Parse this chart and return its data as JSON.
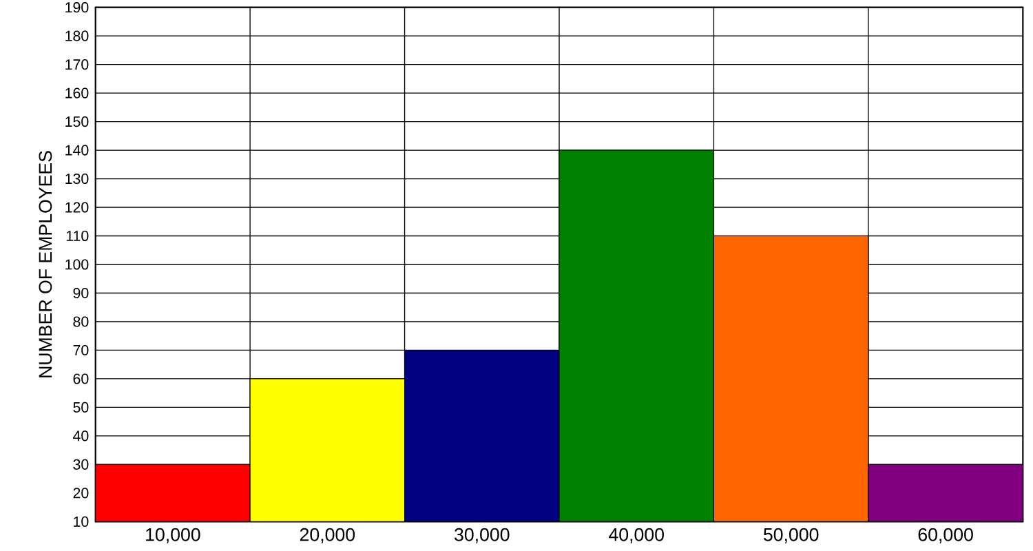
{
  "chart_data": {
    "type": "bar",
    "ylabel": "NUMBER OF EMPLOYEES",
    "categories": [
      "10,000",
      "20,000",
      "30,000",
      "40,000",
      "50,000",
      "60,000"
    ],
    "values": [
      30,
      60,
      70,
      140,
      110,
      30
    ],
    "colors": [
      "#ff0000",
      "#ffff00",
      "#000080",
      "#008000",
      "#ff6600",
      "#800080"
    ],
    "ylim": [
      10,
      190
    ],
    "yticks": [
      10,
      20,
      30,
      40,
      50,
      60,
      70,
      80,
      90,
      100,
      110,
      120,
      130,
      140,
      150,
      160,
      170,
      180,
      190
    ],
    "grid": true
  }
}
